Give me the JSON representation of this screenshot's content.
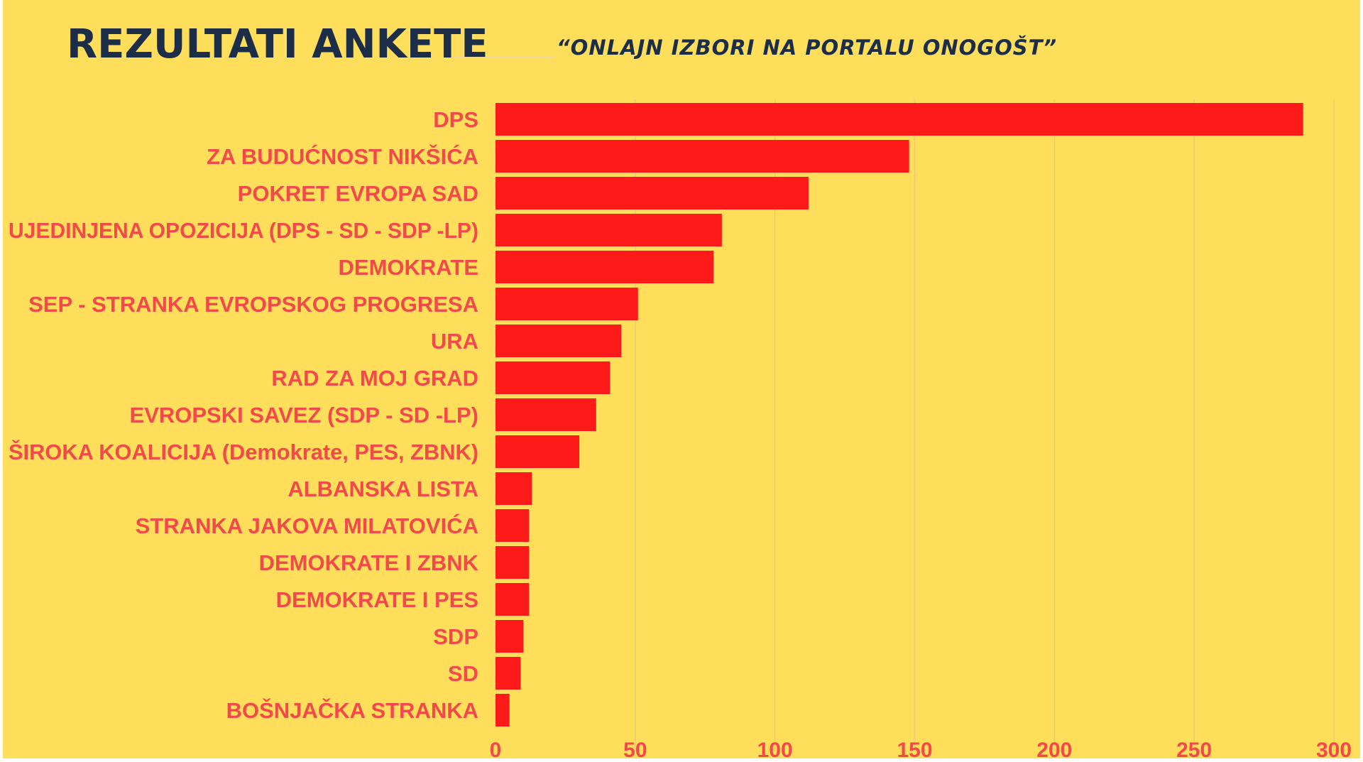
{
  "title": "REZULTATI ANKETE",
  "subtitle": "“ONLAJN IZBORI NA PORTALU ONOGOŠT”",
  "colors": {
    "background": "#FEDE5A",
    "bar": "#FF1A1A",
    "label": "#F24A4A",
    "title": "#1C2E47",
    "grid": "#E8CF6A"
  },
  "chart_data": {
    "type": "bar",
    "orientation": "horizontal",
    "title": "REZULTATI ANKETE",
    "subtitle": "“ONLAJN IZBORI NA PORTALU ONOGOŠT”",
    "xlabel": "",
    "ylabel": "",
    "xlim": [
      0,
      300
    ],
    "xticks": [
      0,
      50,
      100,
      150,
      200,
      250,
      300
    ],
    "grid": "vertical",
    "legend": "none",
    "categories": [
      "DPS",
      "ZA BUDUĆNOST NIKŠIĆA",
      "POKRET EVROPA SAD",
      "UJEDINJENA OPOZICIJA (DPS - SD - SDP -LP)",
      "DEMOKRATE",
      "SEP - STRANKA EVROPSKOG PROGRESA",
      "URA",
      "RAD ZA MOJ GRAD",
      "EVROPSKI SAVEZ (SDP - SD -LP)",
      "ŠIROKA KOALICIJA (Demokrate, PES, ZBNK)",
      "ALBANSKA LISTA",
      "STRANKA JAKOVA MILATOVIĆA",
      "DEMOKRATE I ZBNK",
      "DEMOKRATE I PES",
      "SDP",
      "SD",
      "BOŠNJAČKA STRANKA"
    ],
    "values": [
      289,
      148,
      112,
      81,
      78,
      51,
      45,
      41,
      36,
      30,
      13,
      12,
      12,
      12,
      10,
      9,
      5
    ]
  }
}
